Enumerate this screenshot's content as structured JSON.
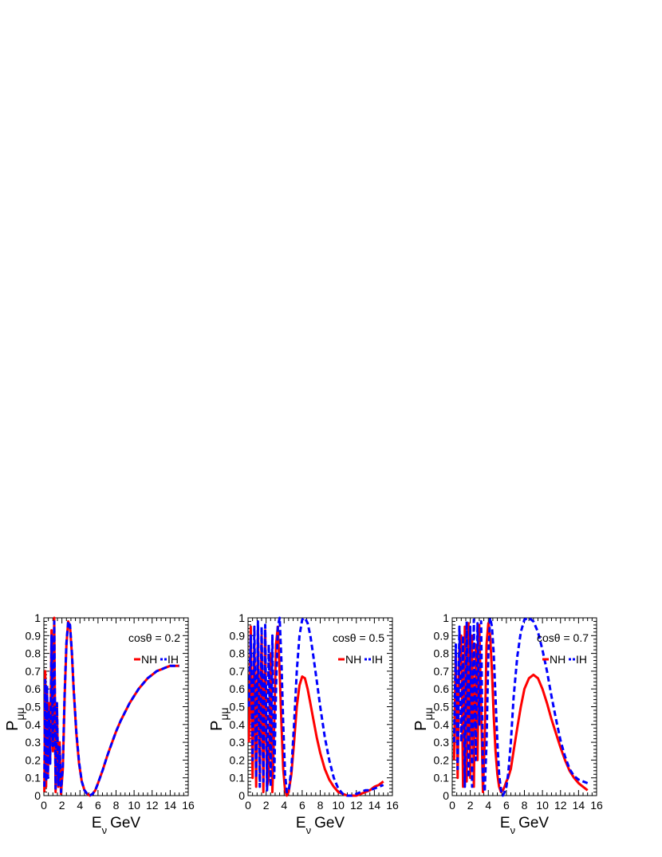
{
  "figure": {
    "panels": [
      {
        "annotation": "cosθ = 0.2",
        "cos_theta": 0.2
      },
      {
        "annotation": "cosθ = 0.5",
        "cos_theta": 0.5
      },
      {
        "annotation": "cosθ = 0.7",
        "cos_theta": 0.7
      }
    ]
  },
  "chart_data": [
    {
      "type": "line",
      "title": "",
      "annotation": "cosθ = 0.2",
      "xlabel": "E_ν GeV",
      "ylabel": "P_μμ",
      "xlim": [
        0,
        16
      ],
      "ylim": [
        0,
        1
      ],
      "xticks": [
        0,
        2,
        4,
        6,
        8,
        10,
        12,
        14,
        16
      ],
      "yticks": [
        0,
        0.1,
        0.2,
        0.3,
        0.4,
        0.5,
        0.6,
        0.7,
        0.8,
        0.9,
        1
      ],
      "legend": {
        "placement": "top-right",
        "entries": [
          "NH",
          "IH"
        ]
      },
      "series": [
        {
          "name": "NH",
          "color": "#ff0000",
          "style": "solid",
          "x": [
            0.05,
            0.15,
            0.25,
            0.35,
            0.45,
            0.55,
            0.7,
            0.85,
            1.0,
            1.15,
            1.3,
            1.45,
            1.6,
            1.75,
            1.9,
            2.1,
            2.3,
            2.5,
            2.7,
            2.9,
            3.1,
            3.3,
            3.6,
            3.9,
            4.2,
            4.5,
            4.8,
            5.1,
            5.4,
            5.7,
            6.0,
            6.5,
            7.0,
            7.5,
            8.0,
            8.5,
            9.0,
            9.5,
            10.0,
            10.5,
            11.0,
            11.5,
            12.0,
            12.5,
            13.0,
            13.5,
            14.0,
            14.5,
            15.0
          ],
          "y": [
            0.02,
            0.7,
            0.05,
            0.58,
            0.12,
            0.52,
            0.2,
            0.93,
            0.25,
            1.0,
            0.02,
            0.5,
            0.05,
            0.3,
            0.01,
            0.15,
            0.55,
            0.85,
            0.98,
            0.95,
            0.8,
            0.6,
            0.35,
            0.18,
            0.08,
            0.03,
            0.01,
            0.0,
            0.01,
            0.03,
            0.07,
            0.14,
            0.22,
            0.29,
            0.36,
            0.42,
            0.47,
            0.52,
            0.56,
            0.6,
            0.63,
            0.66,
            0.68,
            0.7,
            0.71,
            0.72,
            0.73,
            0.73,
            0.73
          ]
        },
        {
          "name": "IH",
          "color": "#0000ff",
          "style": "dashed",
          "x": [
            0.05,
            0.15,
            0.25,
            0.35,
            0.45,
            0.55,
            0.7,
            0.85,
            1.0,
            1.15,
            1.3,
            1.45,
            1.6,
            1.75,
            1.9,
            2.1,
            2.3,
            2.5,
            2.7,
            2.9,
            3.1,
            3.3,
            3.6,
            3.9,
            4.2,
            4.5,
            4.8,
            5.1,
            5.4,
            5.7,
            6.0,
            6.5,
            7.0,
            7.5,
            8.0,
            8.5,
            9.0,
            9.5,
            10.0,
            10.5,
            11.0,
            11.5,
            12.0,
            12.5,
            13.0,
            13.5,
            14.0,
            14.5,
            15.0
          ],
          "y": [
            0.05,
            0.65,
            0.08,
            0.62,
            0.1,
            0.48,
            0.18,
            0.9,
            0.28,
            0.98,
            0.04,
            0.52,
            0.06,
            0.28,
            0.02,
            0.17,
            0.57,
            0.86,
            0.98,
            0.96,
            0.81,
            0.61,
            0.36,
            0.19,
            0.08,
            0.03,
            0.01,
            0.0,
            0.01,
            0.03,
            0.07,
            0.14,
            0.22,
            0.29,
            0.36,
            0.42,
            0.47,
            0.52,
            0.56,
            0.6,
            0.63,
            0.66,
            0.68,
            0.7,
            0.71,
            0.72,
            0.73,
            0.73,
            0.73
          ]
        }
      ]
    },
    {
      "type": "line",
      "title": "",
      "annotation": "cosθ = 0.5",
      "xlabel": "E_ν GeV",
      "ylabel": "P_μμ",
      "xlim": [
        0,
        16
      ],
      "ylim": [
        0,
        1
      ],
      "xticks": [
        0,
        2,
        4,
        6,
        8,
        10,
        12,
        14,
        16
      ],
      "yticks": [
        0,
        0.1,
        0.2,
        0.3,
        0.4,
        0.5,
        0.6,
        0.7,
        0.8,
        0.9,
        1
      ],
      "legend": {
        "placement": "top-right",
        "entries": [
          "NH",
          "IH"
        ]
      },
      "series": [
        {
          "name": "NH",
          "color": "#ff0000",
          "style": "solid",
          "x": [
            0.1,
            0.3,
            0.5,
            0.7,
            0.9,
            1.1,
            1.3,
            1.5,
            1.7,
            1.9,
            2.1,
            2.3,
            2.5,
            2.7,
            2.9,
            3.1,
            3.3,
            3.5,
            3.7,
            3.9,
            4.1,
            4.3,
            4.5,
            4.8,
            5.1,
            5.4,
            5.7,
            6.0,
            6.3,
            6.6,
            6.9,
            7.2,
            7.6,
            8.0,
            8.5,
            9.0,
            9.5,
            10.0,
            10.5,
            11.0,
            11.5,
            12.0,
            12.5,
            13.0,
            13.5,
            14.0,
            14.5,
            15.0
          ],
          "y": [
            0.3,
            0.95,
            0.1,
            0.85,
            0.05,
            0.95,
            0.1,
            0.9,
            0.02,
            0.93,
            0.05,
            0.1,
            0.8,
            0.02,
            0.4,
            0.85,
            0.95,
            0.7,
            0.4,
            0.15,
            0.03,
            0.0,
            0.02,
            0.12,
            0.3,
            0.5,
            0.62,
            0.67,
            0.66,
            0.6,
            0.52,
            0.44,
            0.33,
            0.24,
            0.15,
            0.09,
            0.05,
            0.02,
            0.01,
            0.0,
            0.0,
            0.0,
            0.01,
            0.02,
            0.03,
            0.05,
            0.06,
            0.08
          ]
        },
        {
          "name": "IH",
          "color": "#0000ff",
          "style": "dashed",
          "x": [
            0.1,
            0.3,
            0.5,
            0.7,
            0.9,
            1.1,
            1.3,
            1.5,
            1.7,
            1.9,
            2.1,
            2.3,
            2.5,
            2.7,
            2.9,
            3.1,
            3.3,
            3.5,
            3.7,
            3.9,
            4.1,
            4.3,
            4.5,
            4.8,
            5.1,
            5.4,
            5.7,
            6.0,
            6.3,
            6.6,
            6.9,
            7.2,
            7.6,
            8.0,
            8.5,
            9.0,
            9.5,
            10.0,
            10.5,
            11.0,
            11.5,
            12.0,
            12.5,
            13.0,
            13.5,
            14.0,
            14.5,
            15.0
          ],
          "y": [
            0.5,
            0.9,
            0.2,
            0.95,
            0.1,
            0.98,
            0.05,
            0.95,
            0.08,
            0.96,
            0.03,
            0.85,
            0.05,
            0.9,
            0.1,
            0.6,
            0.95,
            1.0,
            0.75,
            0.4,
            0.12,
            0.02,
            0.02,
            0.15,
            0.4,
            0.7,
            0.9,
            0.99,
            1.0,
            0.97,
            0.9,
            0.8,
            0.65,
            0.5,
            0.33,
            0.2,
            0.1,
            0.04,
            0.01,
            0.0,
            0.0,
            0.01,
            0.02,
            0.03,
            0.03,
            0.04,
            0.05,
            0.06
          ]
        }
      ]
    },
    {
      "type": "line",
      "title": "",
      "annotation": "cosθ = 0.7",
      "xlabel": "E_ν GeV",
      "ylabel": "P_μμ",
      "xlim": [
        0,
        16
      ],
      "ylim": [
        0,
        1
      ],
      "xticks": [
        0,
        2,
        4,
        6,
        8,
        10,
        12,
        14,
        16
      ],
      "yticks": [
        0,
        0.1,
        0.2,
        0.3,
        0.4,
        0.5,
        0.6,
        0.7,
        0.8,
        0.9,
        1
      ],
      "legend": {
        "placement": "top-right",
        "entries": [
          "NH",
          "IH"
        ]
      },
      "series": [
        {
          "name": "NH",
          "color": "#ff0000",
          "style": "solid",
          "x": [
            0.2,
            0.4,
            0.6,
            0.8,
            1.0,
            1.2,
            1.4,
            1.6,
            1.8,
            2.0,
            2.2,
            2.4,
            2.6,
            2.8,
            3.0,
            3.2,
            3.4,
            3.6,
            3.8,
            4.0,
            4.2,
            4.4,
            4.6,
            4.8,
            5.0,
            5.2,
            5.4,
            5.6,
            5.8,
            6.0,
            6.2,
            6.5,
            6.8,
            7.2,
            7.6,
            8.0,
            8.5,
            9.0,
            9.5,
            10.0,
            10.5,
            11.0,
            11.5,
            12.0,
            12.5,
            13.0,
            13.5,
            14.0,
            14.5,
            15.0
          ],
          "y": [
            0.2,
            0.8,
            0.1,
            0.85,
            0.9,
            0.05,
            0.95,
            0.08,
            0.97,
            0.1,
            0.9,
            0.05,
            0.85,
            0.2,
            0.96,
            0.5,
            0.02,
            0.3,
            0.85,
            0.97,
            0.9,
            0.7,
            0.45,
            0.25,
            0.12,
            0.05,
            0.02,
            0.03,
            0.05,
            0.08,
            0.1,
            0.15,
            0.25,
            0.38,
            0.5,
            0.6,
            0.66,
            0.68,
            0.66,
            0.6,
            0.52,
            0.43,
            0.35,
            0.27,
            0.2,
            0.14,
            0.1,
            0.07,
            0.05,
            0.03
          ]
        },
        {
          "name": "IH",
          "color": "#0000ff",
          "style": "dashed",
          "x": [
            0.2,
            0.4,
            0.6,
            0.8,
            1.0,
            1.2,
            1.4,
            1.6,
            1.8,
            2.0,
            2.2,
            2.4,
            2.6,
            2.8,
            3.0,
            3.2,
            3.4,
            3.6,
            3.8,
            4.0,
            4.2,
            4.4,
            4.6,
            4.8,
            5.0,
            5.2,
            5.4,
            5.6,
            5.8,
            6.0,
            6.2,
            6.5,
            6.8,
            7.2,
            7.6,
            8.0,
            8.5,
            9.0,
            9.5,
            10.0,
            10.5,
            11.0,
            11.5,
            12.0,
            12.5,
            13.0,
            13.5,
            14.0,
            14.5,
            15.0
          ],
          "y": [
            0.3,
            0.85,
            0.15,
            0.95,
            0.3,
            0.9,
            0.05,
            0.98,
            0.1,
            0.95,
            0.05,
            0.99,
            0.2,
            0.97,
            0.4,
            0.98,
            0.1,
            0.02,
            0.3,
            0.8,
            1.0,
            0.95,
            0.8,
            0.55,
            0.3,
            0.12,
            0.03,
            0.0,
            0.02,
            0.05,
            0.12,
            0.3,
            0.55,
            0.78,
            0.92,
            0.99,
            1.0,
            0.98,
            0.92,
            0.82,
            0.7,
            0.56,
            0.43,
            0.31,
            0.22,
            0.15,
            0.11,
            0.09,
            0.08,
            0.07
          ]
        }
      ]
    }
  ]
}
